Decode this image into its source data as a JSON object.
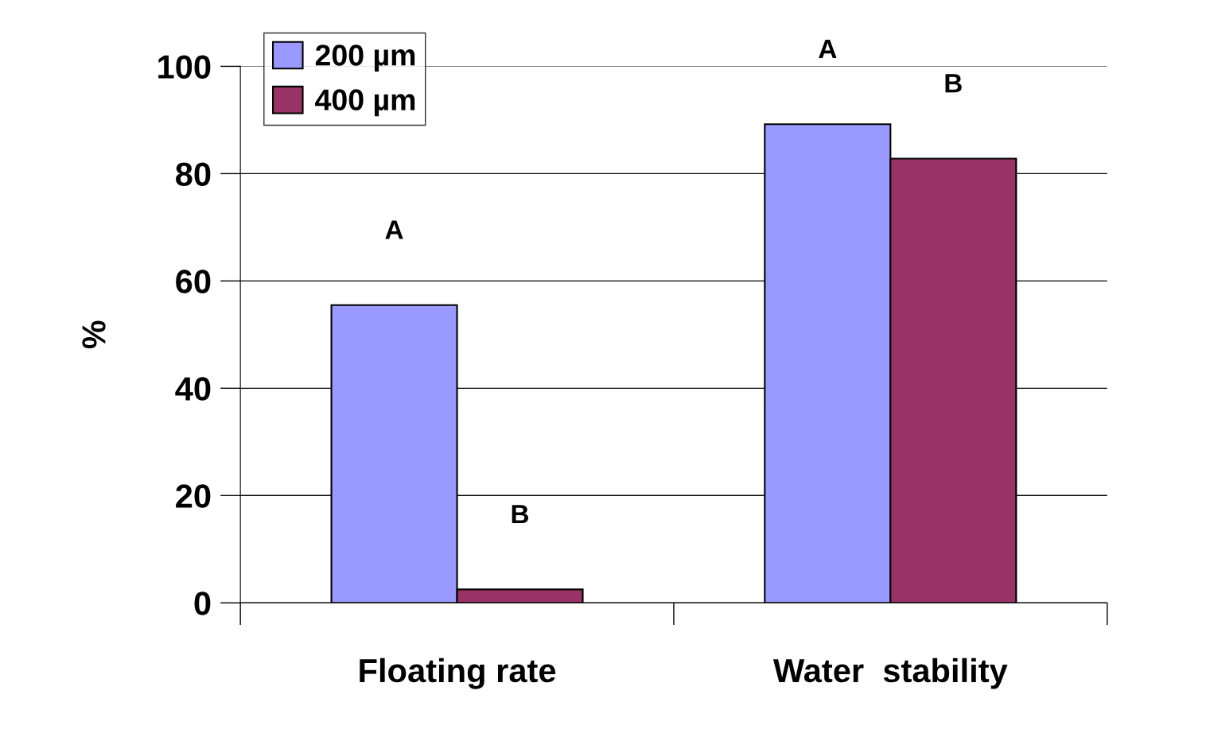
{
  "chart_data": {
    "type": "bar",
    "ylabel": "%",
    "categories": [
      "Floating rate",
      "Water  stability"
    ],
    "series": [
      {
        "name": "200 µm",
        "color": "#9999ff",
        "values": [
          55.5,
          89.2
        ],
        "value_labels": [
          "A",
          "A"
        ]
      },
      {
        "name": "400 µm",
        "color": "#993366",
        "values": [
          2.5,
          82.8
        ],
        "value_labels": [
          "B",
          "B"
        ]
      }
    ],
    "ylim": [
      0,
      100
    ],
    "yticks": [
      0,
      20,
      40,
      60,
      80,
      100
    ],
    "grid": "y",
    "legend": "top left"
  }
}
